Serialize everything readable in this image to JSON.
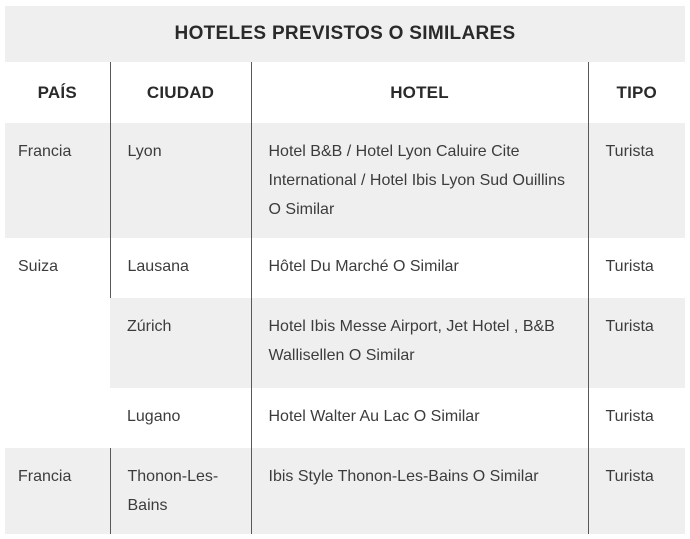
{
  "title": "HOTELES PREVISTOS O SIMILARES",
  "table": {
    "columns": [
      "PAÍS",
      "CIUDAD",
      "HOTEL",
      "TIPO"
    ],
    "rows": [
      {
        "pais": "Francia",
        "ciudad": "Lyon",
        "hotel": "Hotel B&B / Hotel Lyon Caluire Cite International / Hotel Ibis Lyon Sud Ouillins O Similar",
        "tipo": "Turista"
      },
      {
        "pais": "Suiza",
        "ciudad": "Lausana",
        "hotel": "Hôtel Du Marché O Similar",
        "tipo": "Turista"
      },
      {
        "pais": "",
        "ciudad": "Zúrich",
        "hotel": "Hotel Ibis Messe Airport, Jet Hotel , B&B Wallisellen O Similar",
        "tipo": "Turista"
      },
      {
        "pais": "",
        "ciudad": "Lugano",
        "hotel": "Hotel Walter Au Lac O Similar",
        "tipo": "Turista"
      },
      {
        "pais": "Francia",
        "ciudad": "Thonon-Les-Bains",
        "hotel": "Ibis Style Thonon-Les-Bains O Similar",
        "tipo": "Turista"
      }
    ]
  },
  "colors": {
    "band_bg": "#efefef",
    "row_alt_bg": "#efefef",
    "body_text": "#3c3c3c",
    "heading_text": "#2a2a2a",
    "divider": "#595959",
    "page_bg": "#ffffff"
  }
}
